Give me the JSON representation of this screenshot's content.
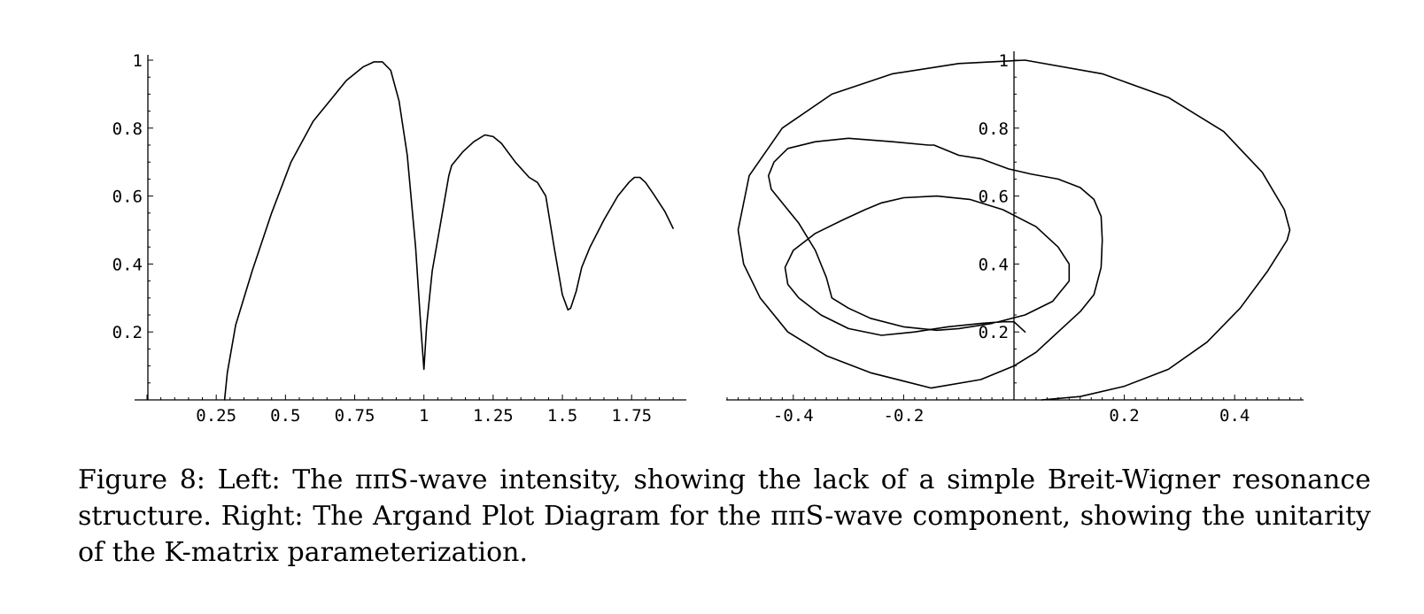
{
  "caption": "Figure 8: Left: The ππS-wave intensity, showing the lack of a simple Breit-Wigner resonance structure. Right: The Argand Plot Diagram for the ππS-wave component, showing the unitarity of the K-matrix parameterization.",
  "chart_data": [
    {
      "type": "line",
      "title": "",
      "xlabel": "",
      "ylabel": "",
      "xlim": [
        0,
        1.9
      ],
      "ylim": [
        0,
        1
      ],
      "x_ticks": [
        "0.25",
        "0.5",
        "0.75",
        "1",
        "1.25",
        "1.5",
        "1.75"
      ],
      "y_ticks": [
        "0.2",
        "0.4",
        "0.6",
        "0.8",
        "1"
      ],
      "grid": false,
      "series": [
        {
          "x": [
            0.28,
            0.29,
            0.32,
            0.38,
            0.45,
            0.52,
            0.6,
            0.67,
            0.72,
            0.78,
            0.82,
            0.85,
            0.88,
            0.91,
            0.94,
            0.97,
            0.99,
            1.0,
            1.01,
            1.03,
            1.06,
            1.09,
            1.1,
            1.14,
            1.18,
            1.22,
            1.25,
            1.28,
            1.33,
            1.38,
            1.41,
            1.44,
            1.47,
            1.5,
            1.52,
            1.53,
            1.55,
            1.57,
            1.6,
            1.65,
            1.7,
            1.74,
            1.76,
            1.78,
            1.8,
            1.83,
            1.87,
            1.9
          ],
          "y": [
            0.0,
            0.08,
            0.22,
            0.38,
            0.55,
            0.7,
            0.82,
            0.89,
            0.94,
            0.98,
            0.995,
            0.995,
            0.97,
            0.88,
            0.72,
            0.45,
            0.2,
            0.09,
            0.22,
            0.38,
            0.52,
            0.66,
            0.69,
            0.73,
            0.76,
            0.78,
            0.775,
            0.755,
            0.7,
            0.655,
            0.64,
            0.6,
            0.45,
            0.31,
            0.265,
            0.27,
            0.32,
            0.39,
            0.45,
            0.53,
            0.6,
            0.64,
            0.655,
            0.655,
            0.64,
            0.605,
            0.555,
            0.505
          ]
        }
      ]
    },
    {
      "type": "line",
      "title": "",
      "xlabel": "",
      "ylabel": "",
      "xlim": [
        -0.52,
        0.52
      ],
      "ylim": [
        0,
        1
      ],
      "x_ticks": [
        "-0.4",
        "-0.2",
        "0.2",
        "0.4"
      ],
      "y_ticks": [
        "0.2",
        "0.4",
        "0.6",
        "0.8",
        "1"
      ],
      "grid": false,
      "series": [
        {
          "x": [
            0.05,
            0.12,
            0.2,
            0.28,
            0.35,
            0.41,
            0.46,
            0.495,
            0.5,
            0.49,
            0.45,
            0.38,
            0.28,
            0.16,
            0.02,
            -0.1,
            -0.22,
            -0.33,
            -0.42,
            -0.48,
            -0.5,
            -0.49,
            -0.46,
            -0.41,
            -0.34,
            -0.26,
            -0.15,
            -0.06,
            0.0,
            0.04,
            0.08,
            0.12,
            0.145,
            0.158,
            0.16,
            0.158,
            0.145,
            0.12,
            0.08,
            0.03,
            -0.01,
            -0.06,
            -0.1,
            -0.145,
            -0.155,
            -0.22,
            -0.3,
            -0.36,
            -0.41,
            -0.435,
            -0.445,
            -0.44,
            -0.42,
            -0.39,
            -0.36,
            -0.34,
            -0.33,
            -0.3,
            -0.26,
            -0.2,
            -0.14,
            -0.1,
            -0.04,
            0.02,
            0.07,
            0.1,
            0.1,
            0.08,
            0.04,
            -0.02,
            -0.08,
            -0.14,
            -0.2,
            -0.24,
            -0.27,
            -0.31,
            -0.36,
            -0.4,
            -0.415,
            -0.41,
            -0.39,
            -0.35,
            -0.3,
            -0.24,
            -0.18,
            -0.12,
            -0.06,
            -0.02,
            0.0,
            0.02
          ],
          "y": [
            0.0,
            0.01,
            0.04,
            0.09,
            0.17,
            0.27,
            0.38,
            0.47,
            0.5,
            0.56,
            0.67,
            0.79,
            0.89,
            0.96,
            1.0,
            0.99,
            0.96,
            0.9,
            0.8,
            0.66,
            0.5,
            0.4,
            0.3,
            0.2,
            0.13,
            0.08,
            0.035,
            0.06,
            0.1,
            0.14,
            0.2,
            0.26,
            0.31,
            0.39,
            0.47,
            0.54,
            0.59,
            0.625,
            0.65,
            0.665,
            0.68,
            0.71,
            0.72,
            0.75,
            0.75,
            0.76,
            0.77,
            0.76,
            0.74,
            0.7,
            0.66,
            0.62,
            0.58,
            0.52,
            0.44,
            0.36,
            0.3,
            0.27,
            0.24,
            0.215,
            0.205,
            0.21,
            0.225,
            0.25,
            0.29,
            0.35,
            0.4,
            0.45,
            0.51,
            0.56,
            0.59,
            0.6,
            0.595,
            0.58,
            0.56,
            0.53,
            0.49,
            0.44,
            0.39,
            0.34,
            0.3,
            0.25,
            0.21,
            0.19,
            0.2,
            0.215,
            0.225,
            0.23,
            0.23,
            0.2
          ]
        }
      ]
    }
  ]
}
